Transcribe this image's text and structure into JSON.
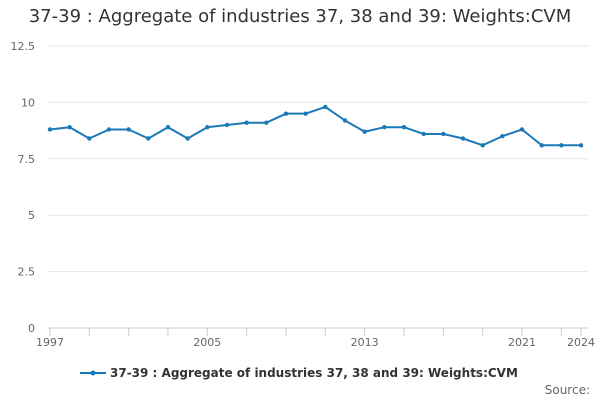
{
  "chart_data": {
    "type": "line",
    "title": "37-39 : Aggregate of industries 37, 38 and 39: Weights:CVM",
    "xlabel": "",
    "ylabel": "",
    "x": [
      1997,
      1998,
      1999,
      2000,
      2001,
      2002,
      2003,
      2004,
      2005,
      2006,
      2007,
      2008,
      2009,
      2010,
      2011,
      2012,
      2013,
      2014,
      2015,
      2016,
      2017,
      2018,
      2019,
      2020,
      2021,
      2022,
      2023,
      2024
    ],
    "series": [
      {
        "name": "37-39 : Aggregate of industries 37, 38 and 39: Weights:CVM",
        "color": "#1a7ab8",
        "values": [
          8.8,
          8.9,
          8.4,
          8.8,
          8.8,
          8.4,
          8.9,
          8.4,
          8.9,
          9.0,
          9.1,
          9.1,
          9.5,
          9.5,
          9.8,
          9.2,
          8.7,
          8.9,
          8.9,
          8.6,
          8.6,
          8.4,
          8.1,
          8.5,
          8.8,
          8.1,
          8.1,
          8.1
        ]
      }
    ],
    "ylim": [
      0,
      12.5
    ],
    "yticks": [
      "0",
      "2.5",
      "5",
      "7.5",
      "10",
      "12.5"
    ],
    "xticks": [
      "1997",
      "2005",
      "2013",
      "2021",
      "2024"
    ],
    "grid": true,
    "legend_position": "bottom"
  },
  "source_label": "Source:"
}
